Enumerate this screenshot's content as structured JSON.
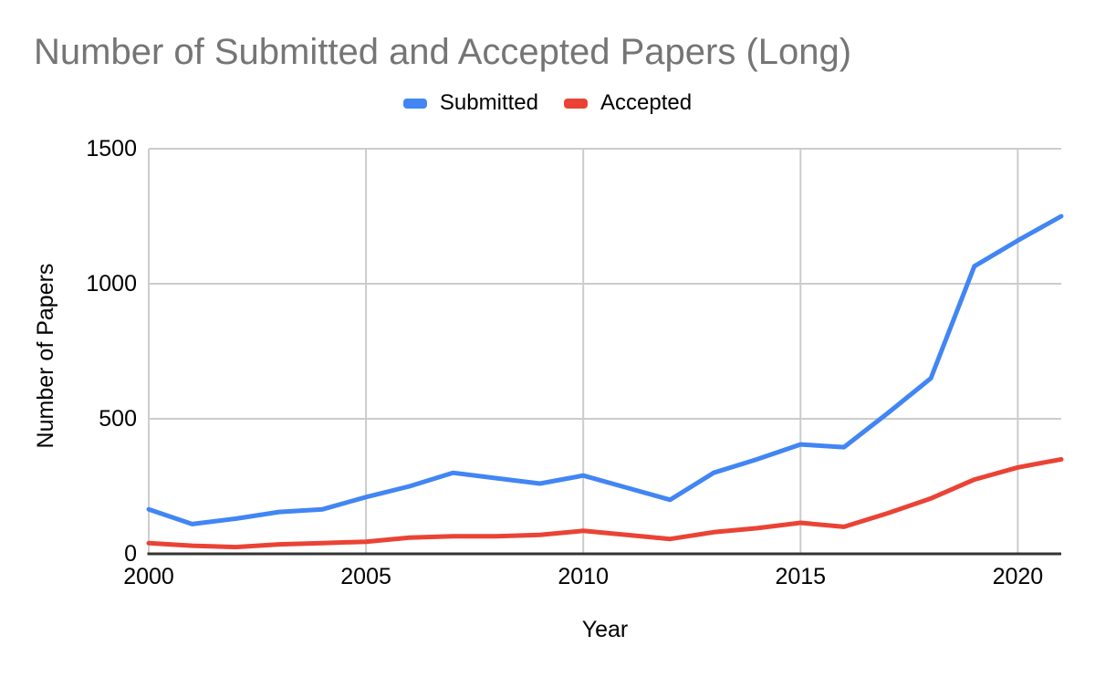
{
  "chart_data": {
    "type": "line",
    "title": "Number of Submitted and Accepted Papers (Long)",
    "xlabel": "Year",
    "ylabel": "Number of Papers",
    "x": [
      2000,
      2001,
      2002,
      2003,
      2004,
      2005,
      2006,
      2007,
      2008,
      2009,
      2010,
      2011,
      2012,
      2013,
      2014,
      2015,
      2016,
      2017,
      2018,
      2019,
      2020,
      2021
    ],
    "series": [
      {
        "name": "Submitted",
        "color": "#4285f4",
        "values": [
          165,
          110,
          130,
          155,
          165,
          210,
          250,
          300,
          280,
          260,
          290,
          245,
          200,
          300,
          350,
          405,
          395,
          520,
          650,
          1065,
          1160,
          1250
        ]
      },
      {
        "name": "Accepted",
        "color": "#ea4335",
        "values": [
          40,
          30,
          25,
          35,
          40,
          45,
          60,
          65,
          65,
          70,
          85,
          70,
          55,
          80,
          95,
          115,
          100,
          150,
          205,
          275,
          320,
          350
        ]
      }
    ],
    "xlim": [
      2000,
      2021
    ],
    "ylim": [
      0,
      1500
    ],
    "xticks": [
      2000,
      2005,
      2010,
      2015,
      2020
    ],
    "yticks": [
      0,
      500,
      1000,
      1500
    ],
    "grid": true,
    "legend_position": "top",
    "colors": {
      "title": "#757575",
      "axis_text": "#000000",
      "gridline": "#cccccc",
      "axis_line": "#333333",
      "background": "#ffffff"
    }
  }
}
